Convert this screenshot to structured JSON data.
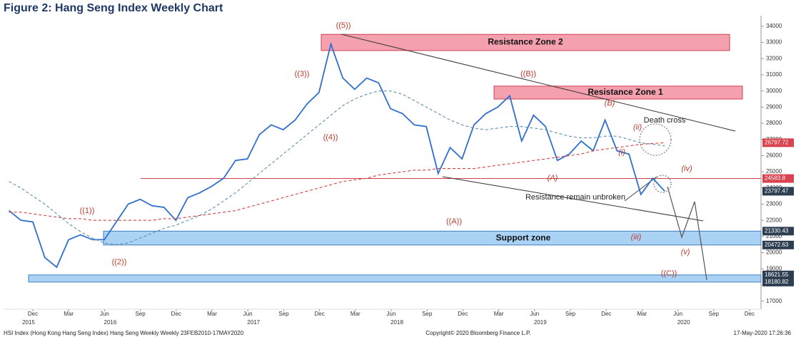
{
  "chart_data": {
    "type": "line",
    "title": "Figure 2: Hang Seng Index Weekly Chart",
    "ylim": [
      16500,
      34700
    ],
    "yticks": [
      17000,
      18000,
      19000,
      20000,
      21000,
      22000,
      23000,
      24000,
      25000,
      26000,
      27000,
      28000,
      29000,
      30000,
      31000,
      32000,
      33000,
      34000
    ],
    "xticks": [
      "Dec",
      "Mar",
      "Jun",
      "Sep",
      "Dec",
      "Mar",
      "Jun",
      "Sep",
      "Dec",
      "Mar",
      "Jun",
      "Sep",
      "Dec",
      "Mar",
      "Jun",
      "Sep",
      "Dec",
      "Mar",
      "Jun",
      "Sep",
      "Dec"
    ],
    "years": [
      "2015",
      "2016",
      "2017",
      "2018",
      "2019",
      "2020"
    ],
    "series": [
      {
        "name": "Hang Seng",
        "color": "#2f6fd0",
        "values": [
          22600,
          22000,
          21900,
          19700,
          19100,
          20800,
          21100,
          20800,
          20800,
          21900,
          23000,
          23300,
          22900,
          22800,
          22000,
          23400,
          23700,
          24100,
          24600,
          25700,
          25800,
          27300,
          27900,
          27600,
          28200,
          29200,
          29900,
          32900,
          30800,
          30100,
          30800,
          30500,
          28900,
          28600,
          27900,
          27800,
          24900,
          26500,
          25800,
          27900,
          28600,
          29000,
          29700,
          26900,
          28500,
          27800,
          25700,
          26100,
          26900,
          26300,
          28200,
          26300,
          26100,
          23600,
          24600,
          23800
        ]
      },
      {
        "color": "#5a8fb0",
        "values": [
          24400,
          24000,
          23500,
          23000,
          22400,
          21800,
          21300,
          20900,
          20600,
          20500,
          20600,
          20900,
          21200,
          21500,
          21700,
          22000,
          22300,
          22700,
          23200,
          23700,
          24300,
          24900,
          25500,
          26100,
          26700,
          27300,
          27900,
          28500,
          29100,
          29500,
          29800,
          30000,
          30000,
          29800,
          29400,
          29000,
          28600,
          28200,
          27900,
          27700,
          27600,
          27700,
          27800,
          27800,
          27700,
          27600,
          27400,
          27200,
          27100,
          27100,
          27200,
          27200,
          27000,
          26800,
          26700,
          26600
        ]
      },
      {
        "color": "#d04040",
        "values": [
          22500,
          22500,
          22400,
          22300,
          22200,
          22100,
          22100,
          22000,
          22000,
          22000,
          22000,
          22000,
          22000,
          22100,
          22100,
          22200,
          22300,
          22400,
          22500,
          22600,
          22800,
          23000,
          23200,
          23400,
          23600,
          23800,
          24000,
          24200,
          24400,
          24500,
          24600,
          24800,
          24900,
          25000,
          25100,
          25100,
          25200,
          25200,
          25200,
          25200,
          25300,
          25400,
          25500,
          25600,
          25700,
          25800,
          25900,
          26000,
          26100,
          26300,
          26400,
          26500,
          26600,
          26700,
          26750,
          26800
        ]
      }
    ],
    "zones": [
      {
        "label": "Resistance Zone 2",
        "low": 32500,
        "high": 33500,
        "color": "#f4a0ae"
      },
      {
        "label": "Resistance Zone 1",
        "low": 29500,
        "high": 30300,
        "color": "#f4a0ae"
      },
      {
        "label": "Support zone",
        "low": 20472.63,
        "high": 21330.43,
        "color": "#a9d2f5"
      },
      {
        "low": 18180.82,
        "high": 18621.55,
        "color": "#a9d2f5"
      }
    ],
    "resistance_line": 24583.8,
    "price_labels": [
      {
        "value": 26797.72,
        "color": "#d9434f"
      },
      {
        "value": 24583.8,
        "color": "#d9434f"
      },
      {
        "value": 23797.47,
        "color": "#2c3e50"
      },
      {
        "value": 21330.43,
        "color": "#2c3e50"
      },
      {
        "value": 20472.63,
        "color": "#2c3e50"
      },
      {
        "value": 18621.55,
        "color": "#2c3e50"
      },
      {
        "value": 18180.82,
        "color": "#2c3e50"
      }
    ],
    "wave_labels": [
      "((5))",
      "((3))",
      "((4))",
      "((1))",
      "((2))",
      "((A))",
      "((B))",
      "(A)",
      "(B)",
      "(i)",
      "(ii)",
      "(iii)",
      "(iv)",
      "(v)",
      "((C))"
    ],
    "annotations": [
      "Death cross",
      "Resistance remain unbroken"
    ],
    "footer": {
      "left": "HSI Index (Hong Kong Hang Seng Index) Hang Seng Weekly  Weekly 23FEB2010-17MAY2020",
      "center": "Copyright© 2020 Bloomberg Finance L.P.",
      "right": "17-May-2020 17:26:36"
    }
  }
}
